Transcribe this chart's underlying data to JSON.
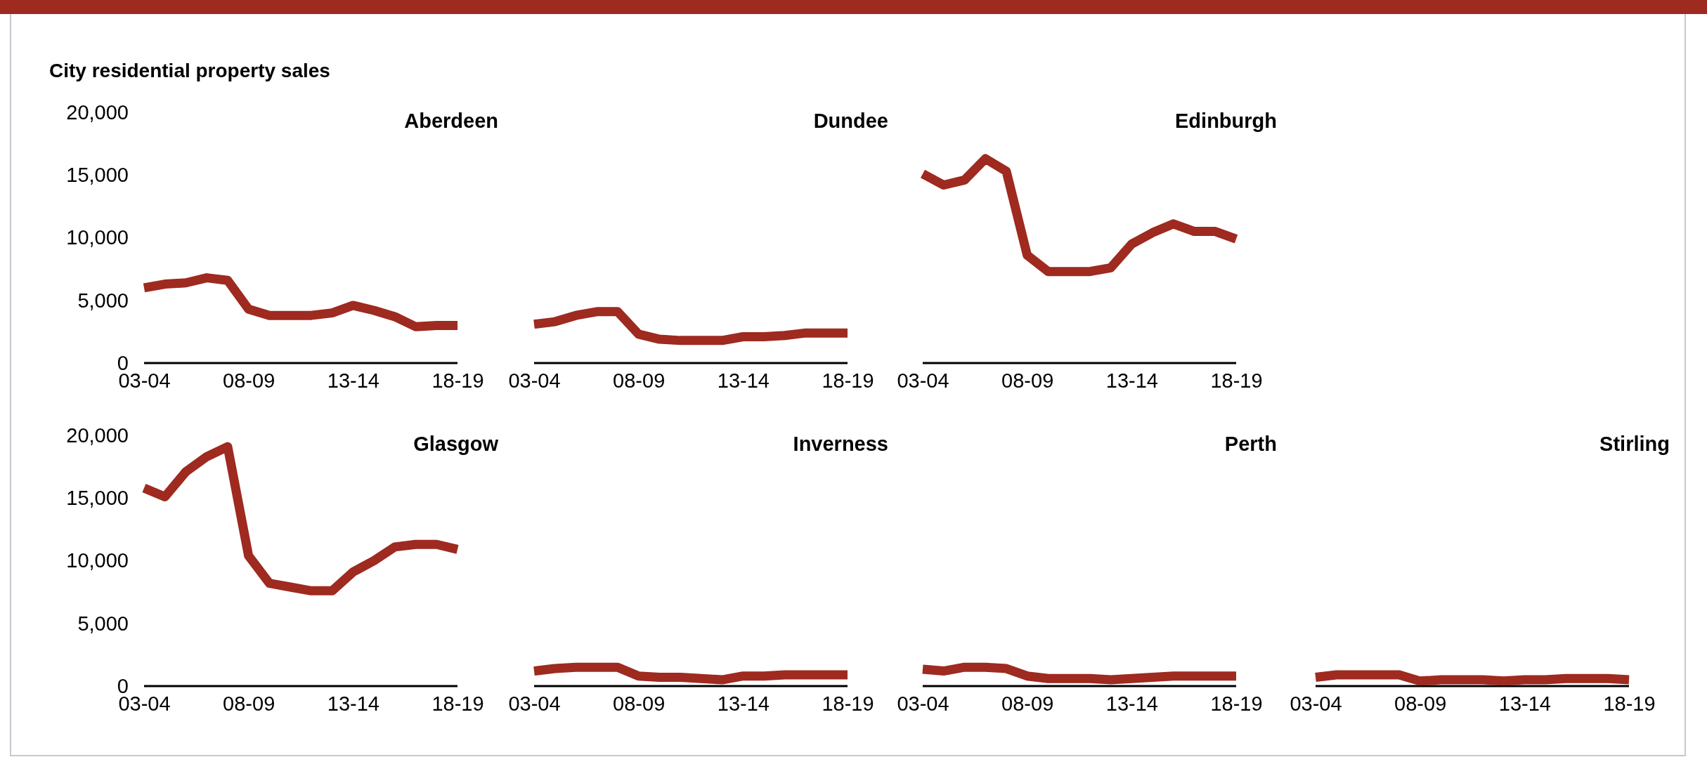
{
  "chart_data": [
    {
      "type": "line",
      "title": "Aberdeen",
      "subtitle": "City residential property sales",
      "categories": [
        "03-04",
        null,
        null,
        null,
        null,
        "08-09",
        null,
        null,
        null,
        null,
        "13-14",
        null,
        null,
        null,
        null,
        "18-19"
      ],
      "values": [
        6000,
        6300,
        6400,
        6800,
        6600,
        4300,
        3800,
        3800,
        3800,
        4000,
        4600,
        4200,
        3700,
        2900,
        3000,
        3000
      ],
      "color": "#9e2a20",
      "ylim": [
        0,
        20000
      ],
      "yticks": [
        {
          "value": 0,
          "label": "0"
        },
        {
          "value": 5000,
          "label": "5,000"
        },
        {
          "value": 10000,
          "label": "10,000"
        },
        {
          "value": 15000,
          "label": "15,000"
        },
        {
          "value": 20000,
          "label": "20,000"
        }
      ],
      "grid": false,
      "marker": "none"
    },
    {
      "type": "line",
      "title": "Dundee",
      "categories": [
        "03-04",
        null,
        null,
        null,
        null,
        "08-09",
        null,
        null,
        null,
        null,
        "13-14",
        null,
        null,
        null,
        null,
        "18-19"
      ],
      "values": [
        3100,
        3300,
        3800,
        4100,
        4100,
        2300,
        1900,
        1800,
        1800,
        1800,
        2100,
        2100,
        2200,
        2400,
        2400,
        2400
      ],
      "color": "#9e2a20",
      "ylim": [
        0,
        20000
      ],
      "tick_labels": "x",
      "grid": false,
      "marker": "none"
    },
    {
      "type": "line",
      "title": "Edinburgh",
      "categories": [
        "03-04",
        null,
        null,
        null,
        null,
        "08-09",
        null,
        null,
        null,
        null,
        "13-14",
        null,
        null,
        null,
        null,
        "18-19"
      ],
      "values": [
        15100,
        14200,
        14600,
        16300,
        15300,
        8600,
        7300,
        7300,
        7300,
        7600,
        9500,
        10400,
        11100,
        10500,
        10500,
        9900
      ],
      "color": "#9e2a20",
      "ylim": [
        0,
        20000
      ],
      "tick_labels": "x",
      "grid": false,
      "marker": "none"
    },
    {
      "type": "line",
      "title": "Glasgow",
      "categories": [
        "03-04",
        null,
        null,
        null,
        null,
        "08-09",
        null,
        null,
        null,
        null,
        "13-14",
        null,
        null,
        null,
        null,
        "18-19"
      ],
      "values": [
        15800,
        15100,
        17100,
        18300,
        19100,
        10400,
        8200,
        7900,
        7600,
        7600,
        9100,
        10000,
        11100,
        11300,
        11300,
        10900
      ],
      "color": "#9e2a20",
      "ylim": [
        0,
        20000
      ],
      "yticks": [
        {
          "value": 0,
          "label": "0"
        },
        {
          "value": 5000,
          "label": "5,000"
        },
        {
          "value": 10000,
          "label": "10,000"
        },
        {
          "value": 15000,
          "label": "15,000"
        },
        {
          "value": 20000,
          "label": "20,000"
        }
      ],
      "grid": false,
      "marker": "none"
    },
    {
      "type": "line",
      "title": "Inverness",
      "categories": [
        "03-04",
        null,
        null,
        null,
        null,
        "08-09",
        null,
        null,
        null,
        null,
        "13-14",
        null,
        null,
        null,
        null,
        "18-19"
      ],
      "values": [
        1200,
        1400,
        1500,
        1500,
        1500,
        800,
        700,
        700,
        600,
        500,
        800,
        800,
        900,
        900,
        900,
        900
      ],
      "color": "#9e2a20",
      "ylim": [
        0,
        20000
      ],
      "tick_labels": "x",
      "grid": false,
      "marker": "none"
    },
    {
      "type": "line",
      "title": "Perth",
      "categories": [
        "03-04",
        null,
        null,
        null,
        null,
        "08-09",
        null,
        null,
        null,
        null,
        "13-14",
        null,
        null,
        null,
        null,
        "18-19"
      ],
      "values": [
        1350,
        1200,
        1500,
        1500,
        1400,
        800,
        600,
        600,
        600,
        500,
        600,
        700,
        800,
        800,
        800,
        800
      ],
      "color": "#9e2a20",
      "ylim": [
        0,
        20000
      ],
      "tick_labels": "x",
      "grid": false,
      "marker": "none"
    },
    {
      "type": "line",
      "title": "Stirling",
      "categories": [
        "03-04",
        null,
        null,
        null,
        null,
        "08-09",
        null,
        null,
        null,
        null,
        "13-14",
        null,
        null,
        null,
        null,
        "18-19"
      ],
      "values": [
        700,
        900,
        900,
        900,
        900,
        400,
        500,
        500,
        500,
        400,
        500,
        500,
        600,
        600,
        600,
        500
      ],
      "color": "#9e2a20",
      "ylim": [
        0,
        20000
      ],
      "tick_labels": "x",
      "grid": false,
      "marker": "none"
    }
  ]
}
